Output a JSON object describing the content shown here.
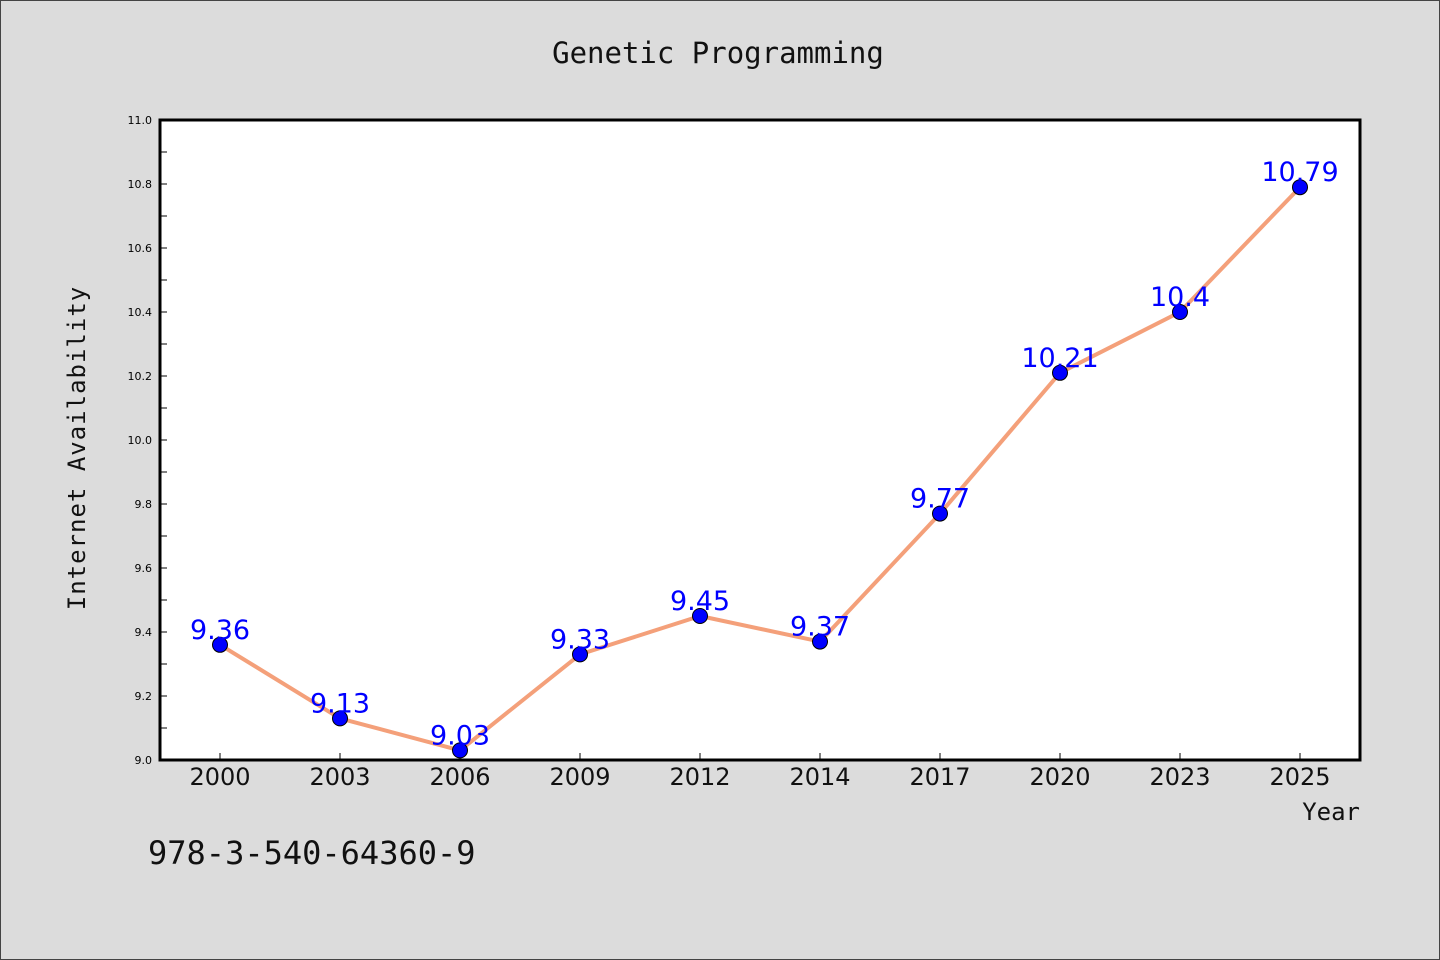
{
  "chart_data": {
    "type": "line",
    "title": "Genetic Programming",
    "xlabel": "Year",
    "ylabel": "Internet Availability",
    "categories": [
      "2000",
      "2003",
      "2006",
      "2009",
      "2012",
      "2014",
      "2017",
      "2020",
      "2023",
      "2025"
    ],
    "series": [
      {
        "values": [
          9.36,
          9.13,
          9.03,
          9.33,
          9.45,
          9.37,
          9.77,
          10.21,
          10.4,
          10.79
        ],
        "labels": [
          "9.36",
          "9.13",
          "9.03",
          "9.33",
          "9.45",
          "9.37",
          "9.77",
          "10.21",
          "10.4",
          "10.79"
        ],
        "line_color": "#f4a07a",
        "marker_color": "#0000ff"
      }
    ],
    "ylim": [
      9.0,
      11.0
    ],
    "yticks": [
      "9.0",
      "9.2",
      "9.4",
      "9.6",
      "9.8",
      "10.0",
      "10.2",
      "10.4",
      "10.6",
      "10.8",
      "11.0"
    ],
    "grid": false,
    "legend": false
  },
  "annotation": "978-3-540-64360-9"
}
